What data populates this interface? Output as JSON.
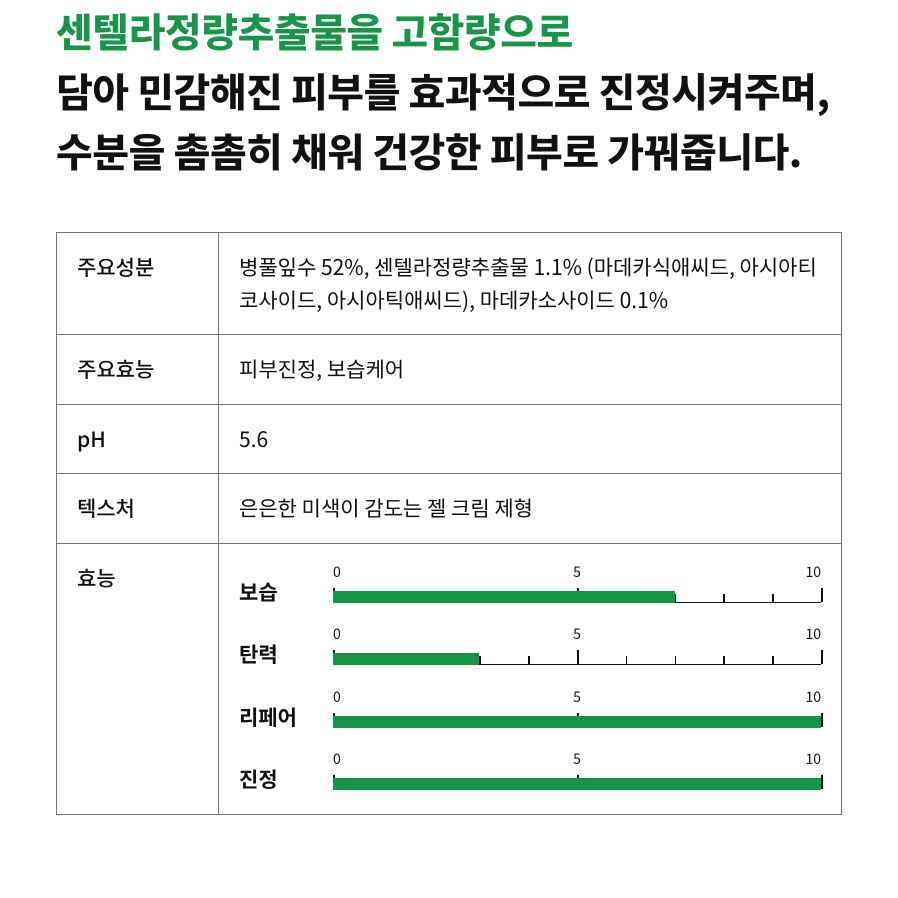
{
  "headline": {
    "accent_line": "센텔라정량추출물을 고함량으로",
    "rest": "담아 민감해진 피부를 효과적으로 진정시켜주며, 수분을 촘촘히 채워 건강한 피부로 가꿔줍니다."
  },
  "table": {
    "rows": [
      {
        "key": "주요성분",
        "value": "병풀잎수 52%, 센텔라정량추출물 1.1% (마데카식애씨드, 아시아티코사이드, 아시아틱애씨드), 마데카소사이드 0.1%"
      },
      {
        "key": "주요효능",
        "value": "피부진정, 보습케어"
      },
      {
        "key": "pH",
        "value": "5.6"
      },
      {
        "key": "텍스처",
        "value": "은은한 미색이 감도는 젤 크림 제형"
      }
    ],
    "efficacy_key": "효능",
    "efficacy": {
      "scale": {
        "min": 0,
        "mid": 5,
        "max": 10
      },
      "bar_color": "#179648",
      "text_color": "#111111",
      "items": [
        {
          "label": "보습",
          "value": 7
        },
        {
          "label": "탄력",
          "value": 3
        },
        {
          "label": "리페어",
          "value": 10
        },
        {
          "label": "진정",
          "value": 10
        }
      ]
    }
  },
  "colors": {
    "accent": "#179648",
    "text": "#111111",
    "border": "#777777",
    "background": "#ffffff"
  }
}
